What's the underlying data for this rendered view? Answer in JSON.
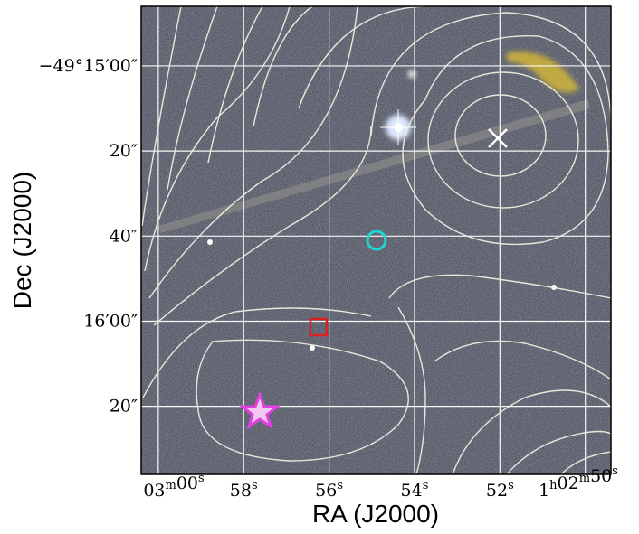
{
  "chart_data": {
    "type": "image",
    "xlabel": "RA (J2000)",
    "ylabel": "Dec (J2000)",
    "x_ticks": [
      {
        "main": "03",
        "sup": "m",
        "main2": "00",
        "sup2": "s",
        "prefix": "",
        "prefix_sup": "",
        "ra_s": 60
      },
      {
        "main": "58",
        "sup": "s",
        "main2": "",
        "sup2": "",
        "prefix": "",
        "prefix_sup": "",
        "ra_s": 58
      },
      {
        "main": "56",
        "sup": "s",
        "main2": "",
        "sup2": "",
        "prefix": "",
        "prefix_sup": "",
        "ra_s": 56
      },
      {
        "main": "54",
        "sup": "s",
        "main2": "",
        "sup2": "",
        "prefix": "",
        "prefix_sup": "",
        "ra_s": 54
      },
      {
        "main": "52",
        "sup": "s",
        "main2": "",
        "sup2": "",
        "prefix": "",
        "prefix_sup": "",
        "ra_s": 52
      },
      {
        "main": "02",
        "sup": "m",
        "main2": "50",
        "sup2": "s",
        "prefix": "1",
        "prefix_sup": "h",
        "ra_s": 50
      }
    ],
    "y_ticks": [
      {
        "label": "−49°15′00″",
        "dec_arcsec": 0
      },
      {
        "label": "20″",
        "dec_arcsec": 20
      },
      {
        "label": "40″",
        "dec_arcsec": 40
      },
      {
        "label": "16′00″",
        "dec_arcsec": 60
      },
      {
        "label": "20″",
        "dec_arcsec": 80
      }
    ],
    "x_range_ra_seconds": [
      60.4,
      49.4
    ],
    "y_range_dec_arcsec_below_49d15m": [
      -14,
      96
    ],
    "grid": true,
    "grid_color": "#ffffff",
    "contour_color": "#f0eee0",
    "background_palette": [
      "#6b6442",
      "#22305a"
    ],
    "markers": [
      {
        "kind": "x-cross",
        "color": "#ffffff",
        "ra_s": 52.1,
        "dec_arcsec": 16
      },
      {
        "kind": "circle",
        "color": "#1fd6d0",
        "ra_s": 55.1,
        "dec_arcsec": 40
      },
      {
        "kind": "square",
        "color": "#d92020",
        "ra_s": 56.4,
        "dec_arcsec": 60
      },
      {
        "kind": "star",
        "color": "#e040e0",
        "ra_s": 57.7,
        "dec_arcsec": 80
      }
    ]
  }
}
